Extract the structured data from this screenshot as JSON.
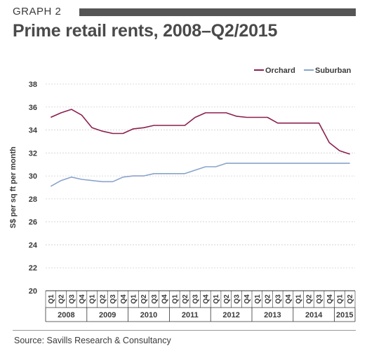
{
  "header": {
    "graph_label": "GRAPH 2",
    "title": "Prime retail rents, 2008–Q2/2015"
  },
  "source": "Source: Savills Research & Consultancy",
  "chart_data": {
    "type": "line",
    "ylabel": "S$ per sq ft per month",
    "ylim": [
      20,
      38
    ],
    "yticks": [
      20,
      22,
      24,
      26,
      28,
      30,
      32,
      34,
      36,
      38
    ],
    "grid": true,
    "legend_position": "top-right",
    "quarters": [
      "Q1",
      "Q2",
      "Q3",
      "Q4",
      "Q1",
      "Q2",
      "Q3",
      "Q4",
      "Q1",
      "Q2",
      "Q3",
      "Q4",
      "Q1",
      "Q2",
      "Q3",
      "Q4",
      "Q1",
      "Q2",
      "Q3",
      "Q4",
      "Q1",
      "Q2",
      "Q3",
      "Q4",
      "Q1",
      "Q2",
      "Q3",
      "Q4",
      "Q1",
      "Q2"
    ],
    "years": [
      {
        "label": "2008",
        "count": 4
      },
      {
        "label": "2009",
        "count": 4
      },
      {
        "label": "2010",
        "count": 4
      },
      {
        "label": "2011",
        "count": 4
      },
      {
        "label": "2012",
        "count": 4
      },
      {
        "label": "2013",
        "count": 4
      },
      {
        "label": "2014",
        "count": 4
      },
      {
        "label": "2015",
        "count": 2
      }
    ],
    "series": [
      {
        "name": "Orchard",
        "color": "#8c1f4f",
        "values": [
          35.1,
          35.5,
          35.8,
          35.3,
          34.2,
          33.9,
          33.7,
          33.7,
          34.1,
          34.2,
          34.4,
          34.4,
          34.4,
          34.4,
          35.1,
          35.5,
          35.5,
          35.5,
          35.2,
          35.1,
          35.1,
          35.1,
          34.6,
          34.6,
          34.6,
          34.6,
          34.6,
          32.9,
          32.2,
          31.9
        ]
      },
      {
        "name": "Suburban",
        "color": "#8aa4cc",
        "values": [
          29.1,
          29.6,
          29.9,
          29.7,
          29.6,
          29.5,
          29.5,
          29.9,
          30.0,
          30.0,
          30.2,
          30.2,
          30.2,
          30.2,
          30.5,
          30.8,
          30.8,
          31.1,
          31.1,
          31.1,
          31.1,
          31.1,
          31.1,
          31.1,
          31.1,
          31.1,
          31.1,
          31.1,
          31.1,
          31.1
        ]
      }
    ]
  }
}
